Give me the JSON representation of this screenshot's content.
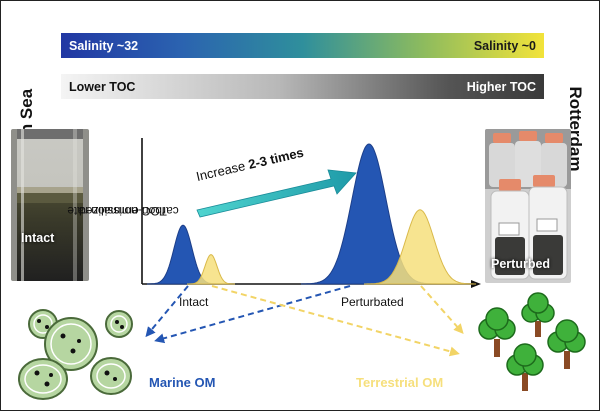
{
  "side_labels": {
    "left": "North Sea",
    "right": "Rotterdam"
  },
  "gradient_bars": {
    "salinity": {
      "left": "Salinity ~32",
      "right": "Salinity ~0"
    },
    "toc": {
      "left": "Lower TOC",
      "right": "Higher TOC"
    }
  },
  "photos": {
    "intact": "Intact",
    "perturbed": "Perturbed"
  },
  "chart": {
    "ylabel_line1": "TOC-normalized",
    "ylabel_line2": "carbon emission rate",
    "x_labels": [
      "Intact",
      "Perturbated"
    ],
    "increase_prefix": "Increase ",
    "increase_bold": "2-3 times"
  },
  "chart_data": {
    "type": "area",
    "title": "",
    "ylabel": "TOC-normalized carbon emission rate",
    "categories": [
      "Intact",
      "Perturbated"
    ],
    "series": [
      {
        "name": "Marine OM",
        "values": [
          0.42,
          1.0
        ]
      },
      {
        "name": "Terrestrial OM",
        "values": [
          0.21,
          0.53
        ]
      }
    ],
    "annotation": "Increase 2-3 times"
  },
  "sources": {
    "marine": "Marine OM",
    "terrestrial": "Terrestrial OM"
  },
  "colors": {
    "marine": "#2456b3",
    "terrestrial": "#f6df7c",
    "arrow": "#27b3b3",
    "tree_foliage": "#3fb13b",
    "trunk": "#8a4a24",
    "algae_cell": "#b6d6a1"
  },
  "icons": [
    "bar-chart-glass-cylinder",
    "glass-bottles",
    "algae-cells-icon",
    "tree-icon"
  ]
}
